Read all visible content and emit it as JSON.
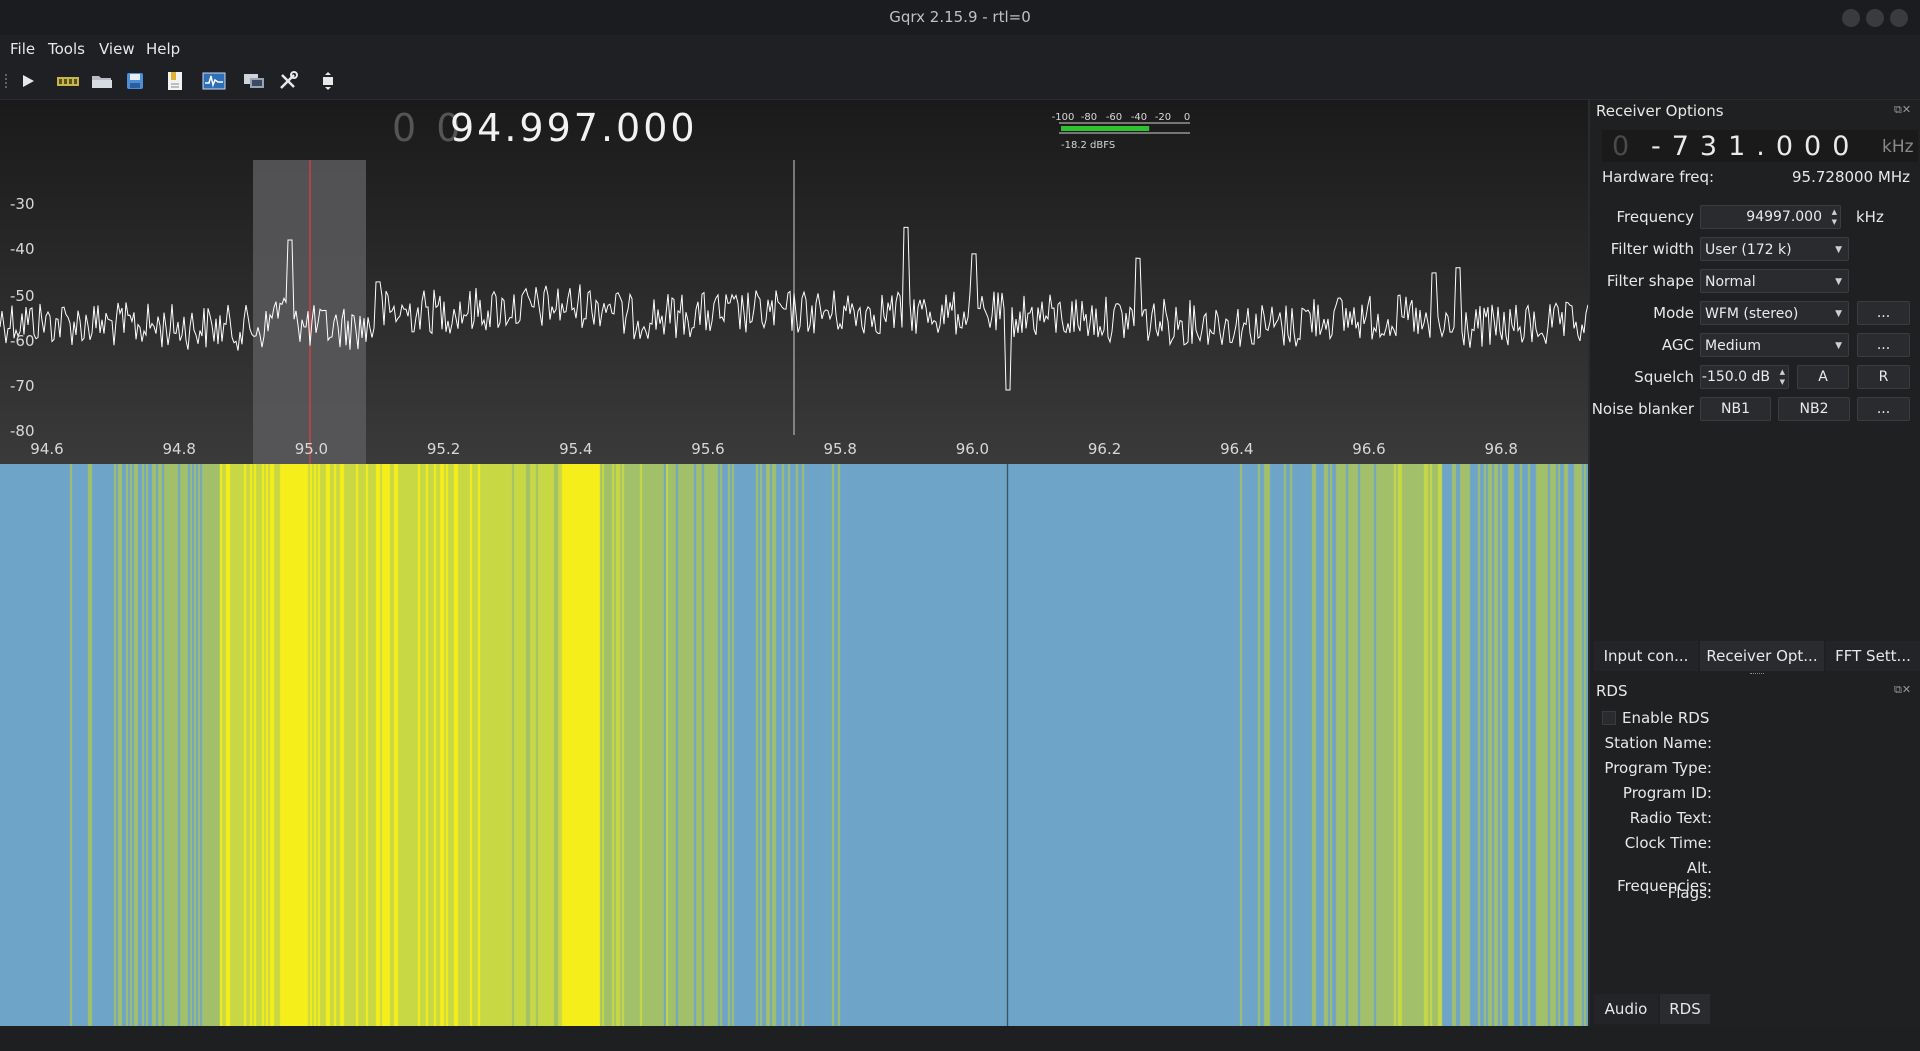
{
  "window": {
    "title": "Gqrx 2.15.9 - rtl=0"
  },
  "menu": {
    "file": "File",
    "tools": "Tools",
    "view": "View",
    "help": "Help"
  },
  "toolbar": {
    "icons": [
      "play-icon",
      "hardware-icon",
      "open-icon",
      "save-icon",
      "bookmark-icon",
      "fft-icon",
      "remote-icon",
      "settings-icon",
      "fullscreen-icon"
    ]
  },
  "display": {
    "frequency_dim": "0 0",
    "frequency_main": "94.997.000",
    "meter_ticks": [
      "-100",
      "-80",
      "-60",
      "-40",
      "-20",
      "0"
    ],
    "meter_value": "-18.2 dBFS",
    "meter_level": 0.7
  },
  "spectrum": {
    "y_ticks": [
      "-30",
      "-40",
      "-50",
      "-60",
      "-70",
      "-80"
    ],
    "x_ticks": [
      "94.6",
      "94.8",
      "95.0",
      "95.2",
      "95.4",
      "95.6",
      "95.8",
      "96.0",
      "96.2",
      "96.4",
      "96.6",
      "96.8"
    ],
    "colors": {
      "trace": "#ffffff",
      "filter": "#5a5a5e",
      "marker": "#ff3b3b"
    }
  },
  "receiver": {
    "title": "Receiver Options",
    "offset_dim": "0",
    "offset_value": "-731.000",
    "offset_unit": "kHz",
    "hw_label": "Hardware freq:",
    "hw_value": "95.728000 MHz",
    "freq_label": "Frequency",
    "freq_value": "94997.000",
    "freq_unit": "kHz",
    "filter_width_label": "Filter width",
    "filter_width_value": "User (172 k)",
    "filter_shape_label": "Filter shape",
    "filter_shape_value": "Normal",
    "mode_label": "Mode",
    "mode_value": "WFM (stereo)",
    "agc_label": "AGC",
    "agc_value": "Medium",
    "squelch_label": "Squelch",
    "squelch_value": "-150.0 dB",
    "noise_label": "Noise blanker",
    "more": "...",
    "btn_a": "A",
    "btn_r": "R",
    "nb1": "NB1",
    "nb2": "NB2"
  },
  "tabs_top": [
    "Input con...",
    "Receiver Opt...",
    "FFT Sett..."
  ],
  "rds": {
    "title": "RDS",
    "enable": "Enable RDS",
    "fields": [
      "Station Name:",
      "Program Type:",
      "Program ID:",
      "Radio Text:",
      "Clock Time:",
      "Alt. Frequencies:",
      "Flags:"
    ]
  },
  "tabs_bottom": [
    "Audio",
    "RDS"
  ]
}
